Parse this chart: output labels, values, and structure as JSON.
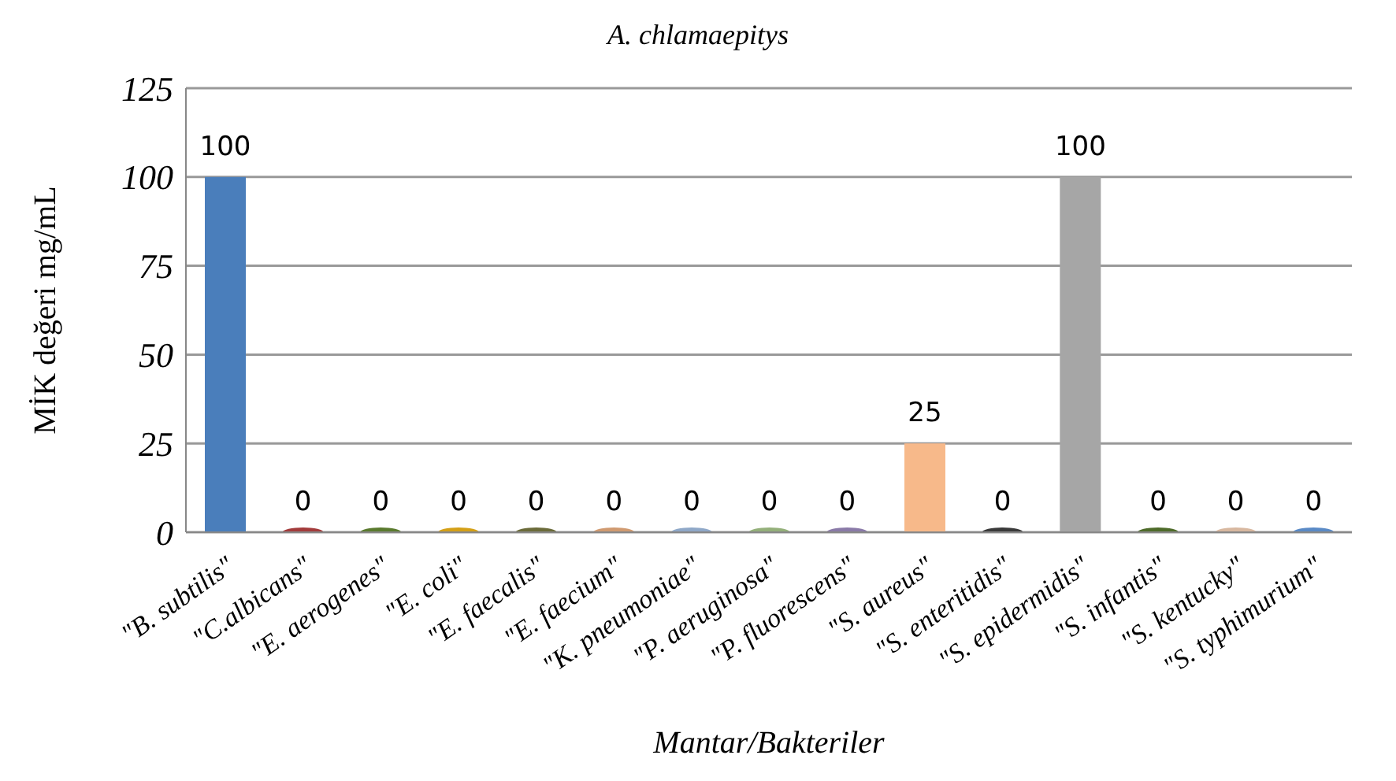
{
  "chart_data": {
    "type": "bar",
    "title": "A. chlamaepitys",
    "xlabel": "Mantar/Bakteriler",
    "ylabel": "MİK değeri mg/mL",
    "categories": [
      "\"B. subtilis\"",
      "\"C.albicans\"",
      "\"E. aerogenes\"",
      "\"E. coli\"",
      "\"E. faecalis\"",
      "\"E. faecium\"",
      "\"K. pneumoniae\"",
      "\"P. aeruginosa\"",
      "\"P. fluorescens\"",
      "\"S. aureus\"",
      "\"S. enteritidis\"",
      "\"S. epidermidis\"",
      "\"S. infantis\"",
      "\"S. kentucky\"",
      "\"S. typhimurium\""
    ],
    "values": [
      100,
      0,
      0,
      0,
      0,
      0,
      0,
      0,
      0,
      25,
      0,
      100,
      0,
      0,
      0
    ],
    "colors": [
      "#4a7ebb",
      "#a33b3b",
      "#5a7a2e",
      "#d4a017",
      "#6b6b3a",
      "#d09a70",
      "#8fa8c8",
      "#94b07a",
      "#8a7aa8",
      "#f7b98a",
      "#3a3a3a",
      "#a6a6a6",
      "#4e6b2a",
      "#d8b8a0",
      "#5a8ac6"
    ],
    "ylim": [
      0,
      125
    ],
    "yticks": [
      0,
      25,
      50,
      75,
      100,
      125
    ],
    "grid": "y",
    "data_labels": true
  }
}
